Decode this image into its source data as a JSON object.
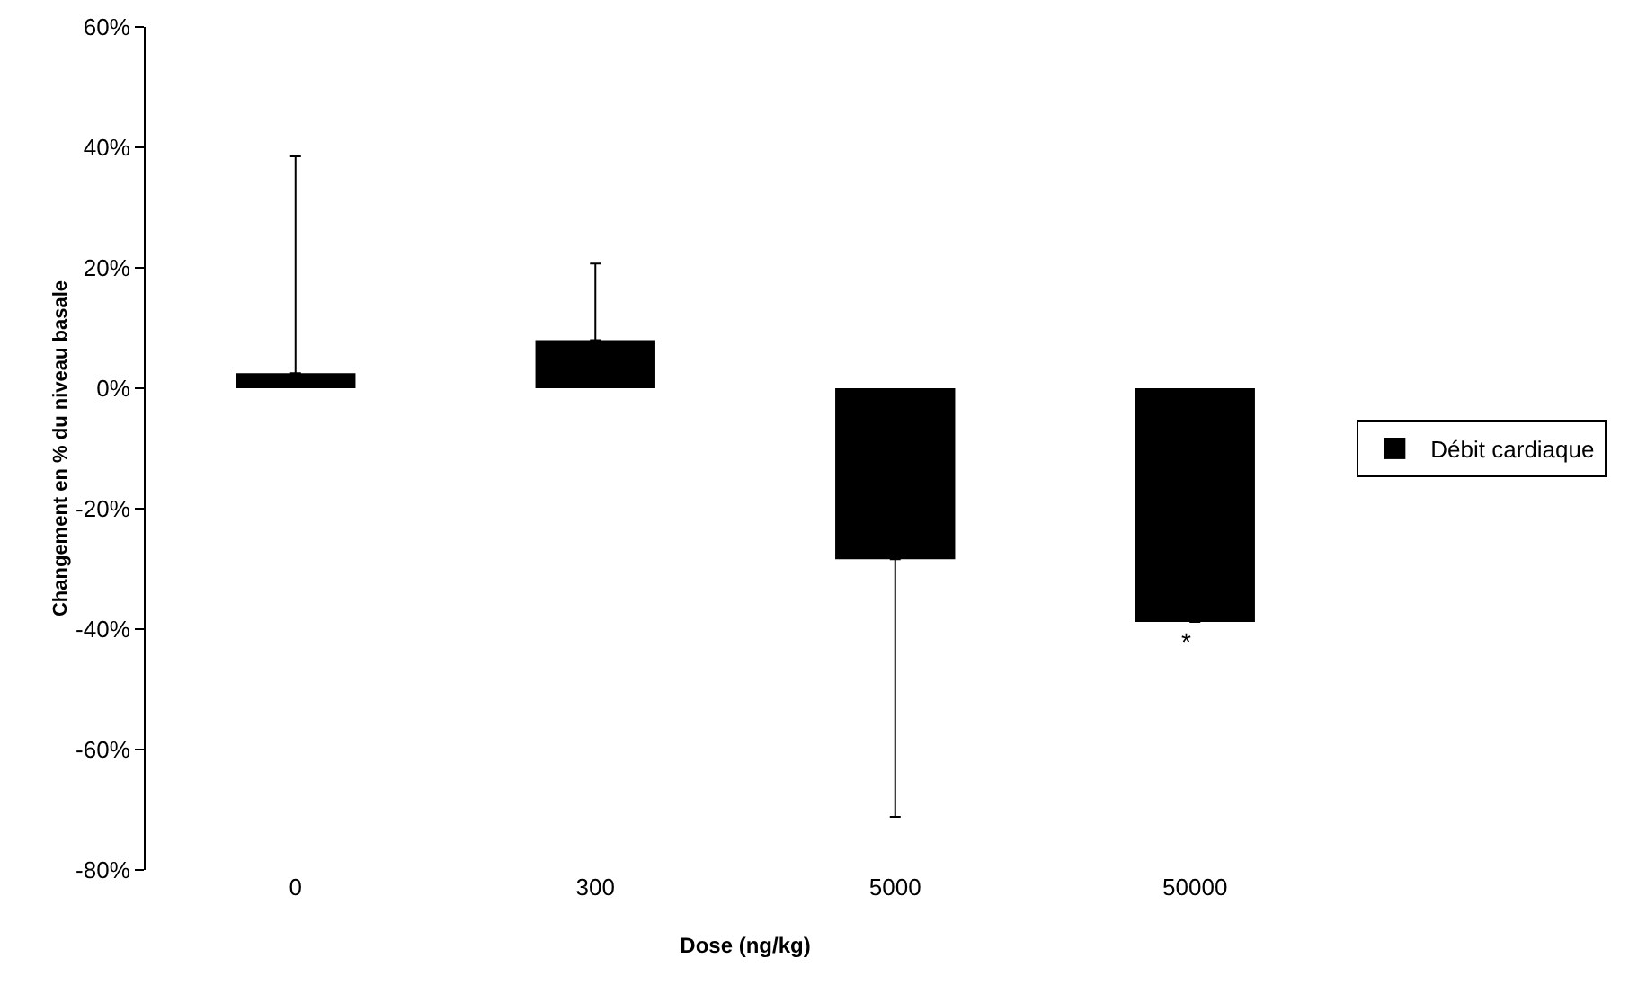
{
  "chart_data": {
    "type": "bar",
    "xlabel": "Dose (ng/kg)",
    "ylabel": "Changement en % du niveau basale",
    "categories": [
      "0",
      "300",
      "5000",
      "50000"
    ],
    "series": [
      {
        "name": "Débit cardiaque",
        "color": "#000000",
        "values": [
          2.5,
          8,
          -28.4,
          -38.8
        ],
        "errors": [
          [
            2.5,
            38.5
          ],
          [
            8,
            20.7
          ],
          [
            -71.2,
            -28.4
          ],
          null
        ]
      }
    ],
    "ylim": [
      -80,
      60
    ],
    "yticks": [
      {
        "value": -80,
        "label": "-80%"
      },
      {
        "value": -60,
        "label": "-60%"
      },
      {
        "value": -40,
        "label": "-40%"
      },
      {
        "value": -20,
        "label": "-20%"
      },
      {
        "value": 0,
        "label": "0%"
      },
      {
        "value": 20,
        "label": "20%"
      },
      {
        "value": 40,
        "label": "40%"
      },
      {
        "value": 60,
        "label": "60%"
      }
    ],
    "annotations": [
      "*"
    ],
    "grid": false,
    "legend": "right"
  }
}
